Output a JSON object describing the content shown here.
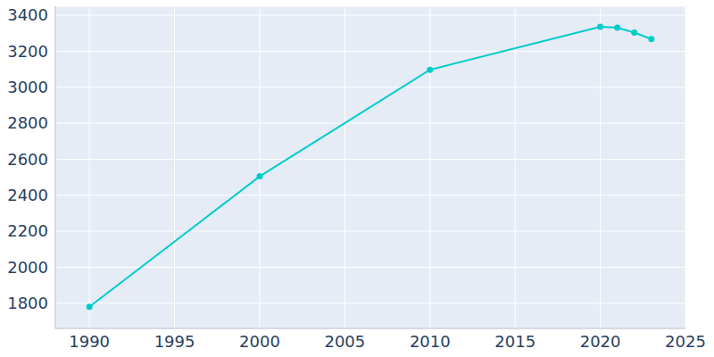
{
  "chart_data": {
    "type": "line",
    "x": [
      1990,
      2000,
      2010,
      2020,
      2021,
      2022,
      2023
    ],
    "values": [
      1780,
      2505,
      3097,
      3336,
      3331,
      3304,
      3268
    ],
    "color": "#00cccc",
    "xlim": [
      1988,
      2025
    ],
    "ylim": [
      1660,
      3450
    ],
    "xticks": [
      1990,
      1995,
      2000,
      2005,
      2010,
      2015,
      2020,
      2025
    ],
    "yticks": [
      1800,
      2000,
      2200,
      2400,
      2600,
      2800,
      3000,
      3200,
      3400
    ],
    "grid": true,
    "marker": "circle"
  }
}
